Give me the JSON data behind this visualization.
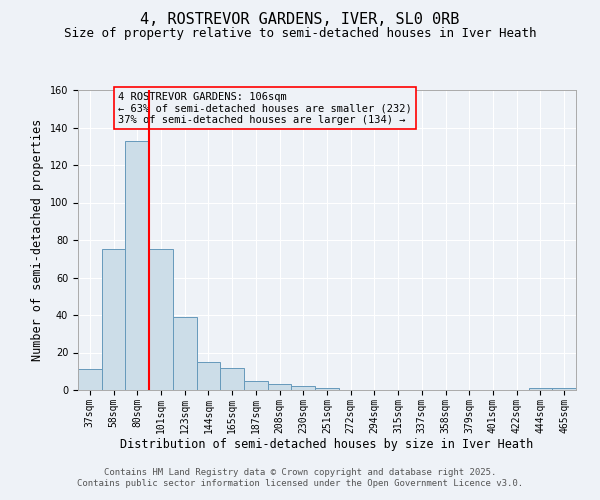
{
  "title": "4, ROSTREVOR GARDENS, IVER, SL0 0RB",
  "subtitle": "Size of property relative to semi-detached houses in Iver Heath",
  "xlabel": "Distribution of semi-detached houses by size in Iver Heath",
  "ylabel": "Number of semi-detached properties",
  "categories": [
    "37sqm",
    "58sqm",
    "80sqm",
    "101sqm",
    "123sqm",
    "144sqm",
    "165sqm",
    "187sqm",
    "208sqm",
    "230sqm",
    "251sqm",
    "272sqm",
    "294sqm",
    "315sqm",
    "337sqm",
    "358sqm",
    "379sqm",
    "401sqm",
    "422sqm",
    "444sqm",
    "465sqm"
  ],
  "values": [
    11,
    75,
    133,
    75,
    39,
    15,
    12,
    5,
    3,
    2,
    1,
    0,
    0,
    0,
    0,
    0,
    0,
    0,
    0,
    1,
    1
  ],
  "bar_color": "#ccdde8",
  "bar_edge_color": "#6699bb",
  "vline_index": 3,
  "vline_color": "red",
  "annotation_box_text": "4 ROSTREVOR GARDENS: 106sqm\n← 63% of semi-detached houses are smaller (232)\n37% of semi-detached houses are larger (134) →",
  "annotation_box_color": "red",
  "footer_text": "Contains HM Land Registry data © Crown copyright and database right 2025.\nContains public sector information licensed under the Open Government Licence v3.0.",
  "ylim": [
    0,
    160
  ],
  "yticks": [
    0,
    20,
    40,
    60,
    80,
    100,
    120,
    140,
    160
  ],
  "bg_color": "#eef2f7",
  "grid_color": "#ffffff",
  "title_fontsize": 11,
  "subtitle_fontsize": 9,
  "axis_label_fontsize": 8.5,
  "tick_fontsize": 7,
  "annotation_fontsize": 7.5,
  "footer_fontsize": 6.5
}
